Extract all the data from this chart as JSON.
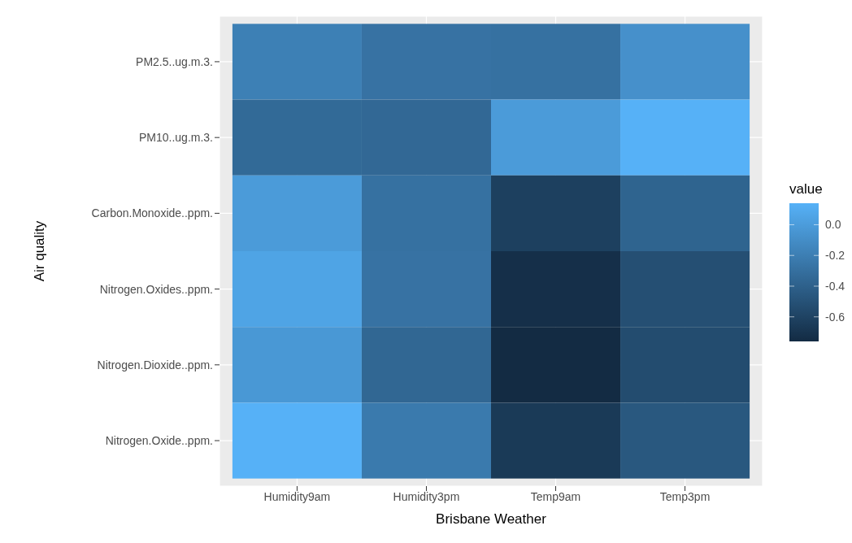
{
  "chart_data": {
    "type": "heatmap",
    "xlabel": "Brisbane Weather",
    "ylabel": "Air quality",
    "legend_title": "value",
    "categories": [
      "Humidity9am",
      "Humidity3pm",
      "Temp9am",
      "Temp3pm"
    ],
    "y_categories": [
      "PM2.5..ug.m.3.",
      "PM10..ug.m.3.",
      "Carbon.Monoxide..ppm.",
      "Nitrogen.Oxides..ppm.",
      "Nitrogen.Dioxide..ppm.",
      "Nitrogen.Oxide..ppm."
    ],
    "cells": [
      [
        -0.19,
        -0.28,
        -0.29,
        -0.08
      ],
      [
        -0.34,
        -0.35,
        -0.01,
        0.14
      ],
      [
        -0.01,
        -0.29,
        -0.62,
        -0.38
      ],
      [
        0.05,
        -0.28,
        -0.73,
        -0.52
      ],
      [
        -0.03,
        -0.36,
        -0.76,
        -0.54
      ],
      [
        0.14,
        -0.23,
        -0.66,
        -0.46
      ]
    ],
    "clim": [
      -0.76,
      0.14
    ],
    "cticks": [
      {
        "value": 0,
        "label": "0.0"
      },
      -0.2,
      -0.4,
      -0.6
    ],
    "grid": true
  }
}
